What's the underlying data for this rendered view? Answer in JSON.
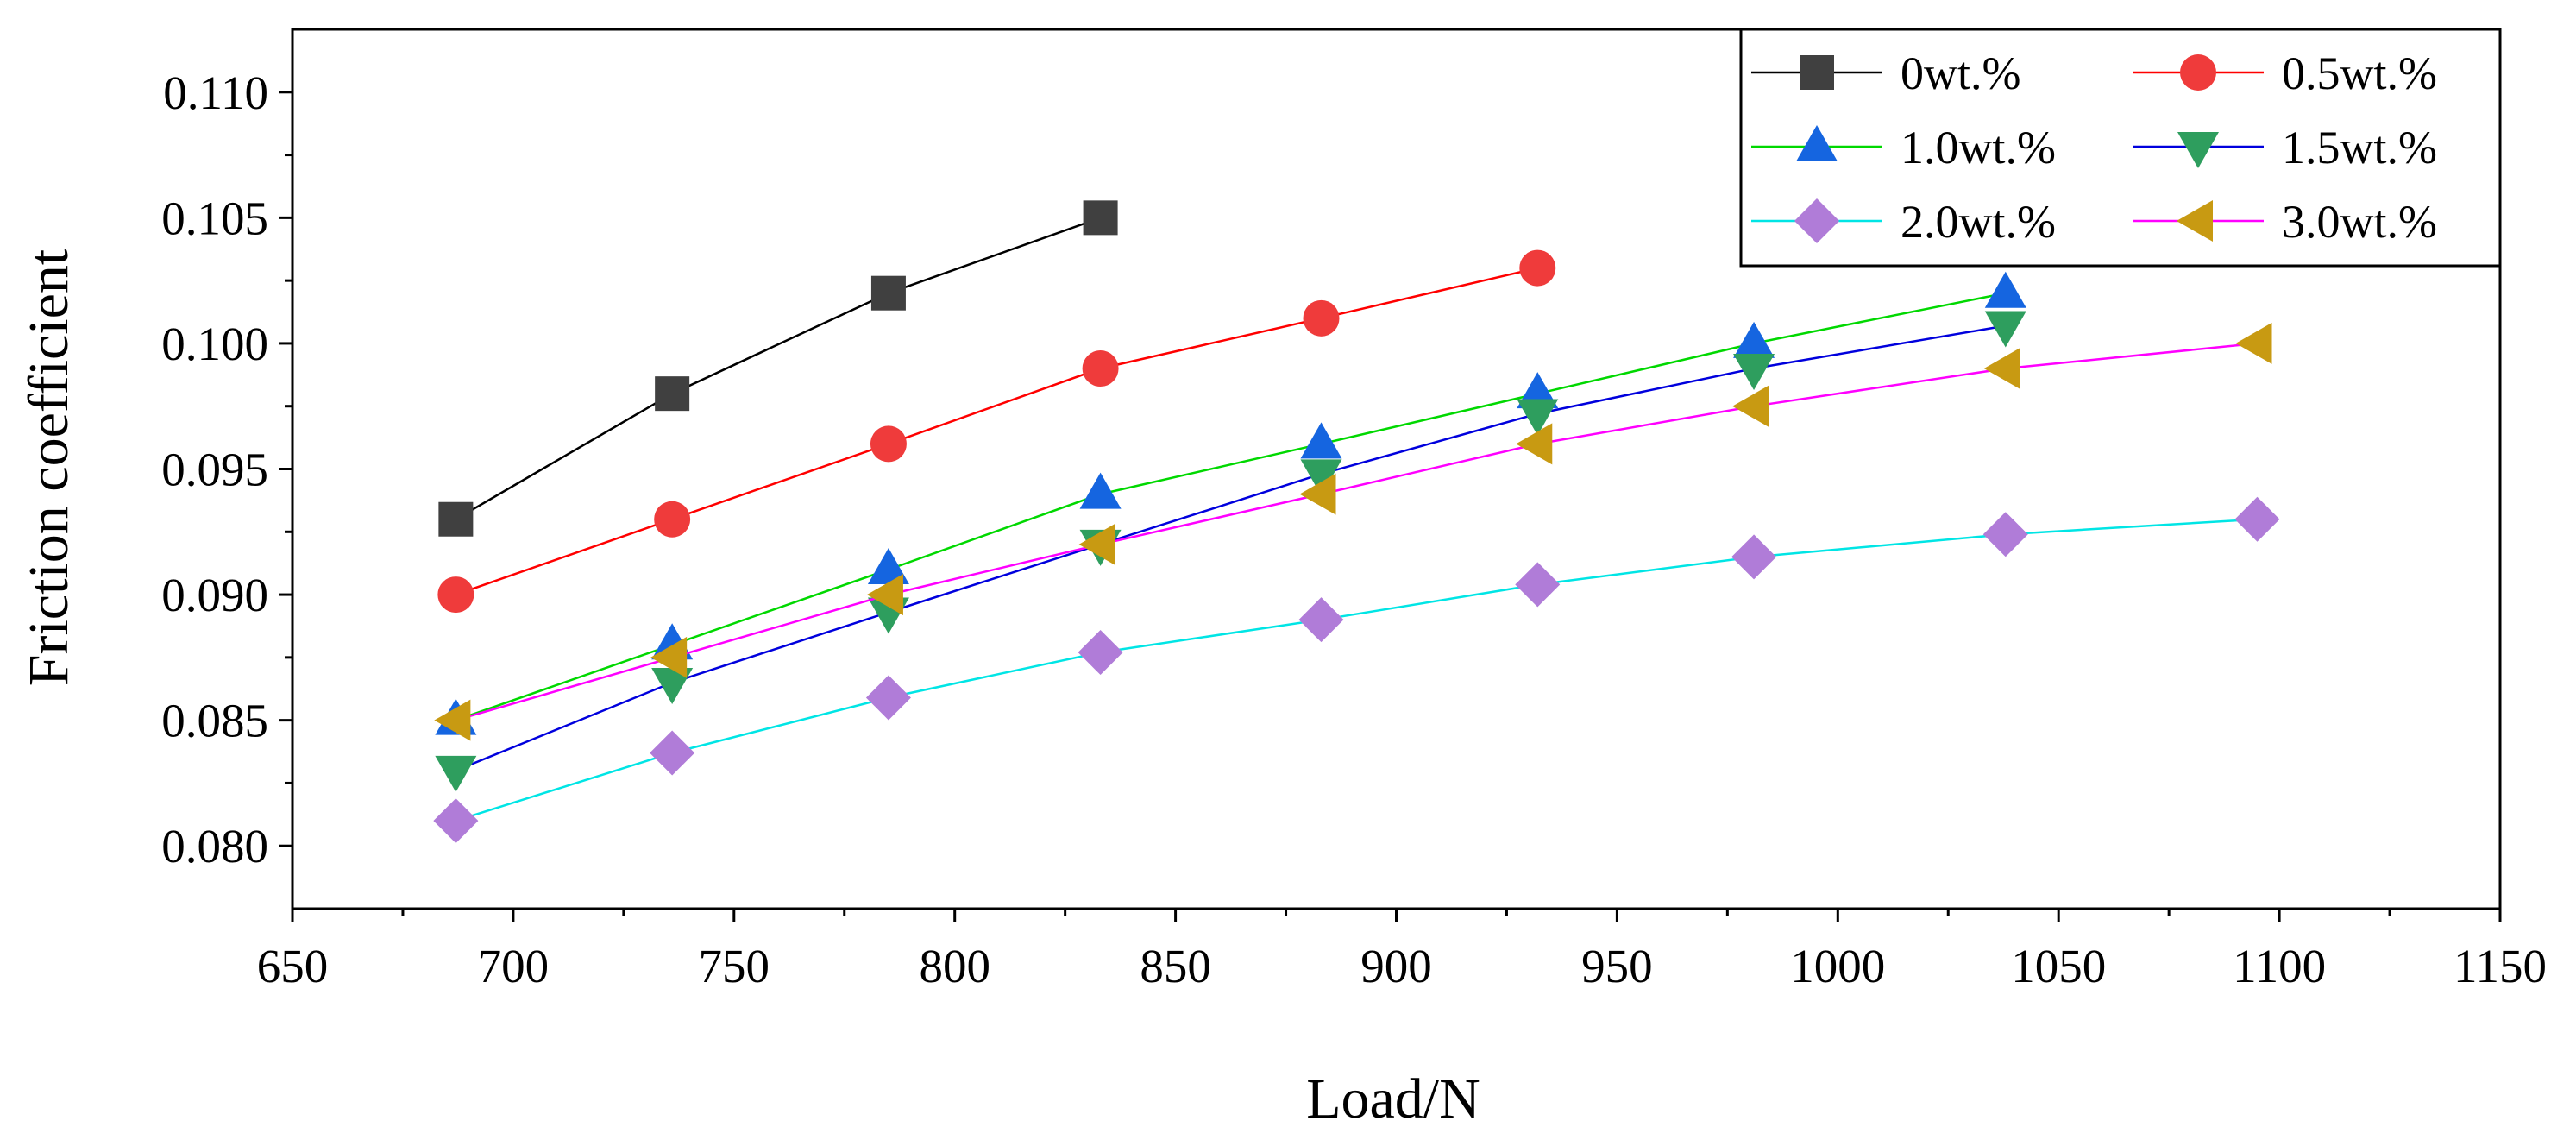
{
  "chart_data": {
    "type": "line",
    "title": "",
    "xlabel": "Load/N",
    "ylabel": "Friction coefficient",
    "xlim": [
      650,
      1150
    ],
    "ylim": [
      0.0775,
      0.1125
    ],
    "xticks": [
      650,
      700,
      750,
      800,
      850,
      900,
      950,
      1000,
      1050,
      1100,
      1150
    ],
    "xtick_labels": [
      "650",
      "700",
      "750",
      "800",
      "850",
      "900",
      "950",
      "1000",
      "1050",
      "1100",
      "1150"
    ],
    "yticks": [
      0.08,
      0.085,
      0.09,
      0.095,
      0.1,
      0.105,
      0.11
    ],
    "ytick_labels": [
      "0.080",
      "0.085",
      "0.090",
      "0.095",
      "0.100",
      "0.105",
      "0.110"
    ],
    "grid": false,
    "legend_position": "top-right",
    "series": [
      {
        "name": "0wt.%",
        "color": "#000000",
        "marker_color": "#404040",
        "marker": "square",
        "x": [
          687,
          736,
          785,
          833
        ],
        "y": [
          0.093,
          0.098,
          0.102,
          0.105
        ]
      },
      {
        "name": "0.5wt.%",
        "color": "#ff0000",
        "marker_color": "#ef3b3b",
        "marker": "circle",
        "x": [
          687,
          736,
          785,
          833,
          883,
          932
        ],
        "y": [
          0.09,
          0.093,
          0.096,
          0.099,
          0.101,
          0.103
        ]
      },
      {
        "name": "1.0wt.%",
        "color": "#00d800",
        "marker_color": "#1565e0",
        "marker": "triangle-up",
        "x": [
          687,
          736,
          785,
          833,
          883,
          932,
          981,
          1038
        ],
        "y": [
          0.085,
          0.088,
          0.091,
          0.094,
          0.096,
          0.098,
          0.1,
          0.102
        ]
      },
      {
        "name": "1.5wt.%",
        "color": "#0000dd",
        "marker_color": "#2e9e5e",
        "marker": "triangle-down",
        "x": [
          687,
          736,
          785,
          833,
          883,
          932,
          981,
          1038
        ],
        "y": [
          0.083,
          0.0865,
          0.0893,
          0.092,
          0.0948,
          0.0972,
          0.099,
          0.1007
        ]
      },
      {
        "name": "2.0wt.%",
        "color": "#00e5e5",
        "marker_color": "#b07cd8",
        "marker": "diamond",
        "x": [
          687,
          736,
          785,
          833,
          883,
          932,
          981,
          1038,
          1095
        ],
        "y": [
          0.081,
          0.0837,
          0.0859,
          0.0877,
          0.089,
          0.0904,
          0.0915,
          0.0924,
          0.093
        ]
      },
      {
        "name": "3.0wt.%",
        "color": "#ff00ff",
        "marker_color": "#c89a12",
        "marker": "triangle-left",
        "x": [
          687,
          736,
          785,
          833,
          883,
          932,
          981,
          1038,
          1095
        ],
        "y": [
          0.085,
          0.0875,
          0.09,
          0.092,
          0.094,
          0.096,
          0.0975,
          0.099,
          0.1
        ]
      }
    ]
  }
}
